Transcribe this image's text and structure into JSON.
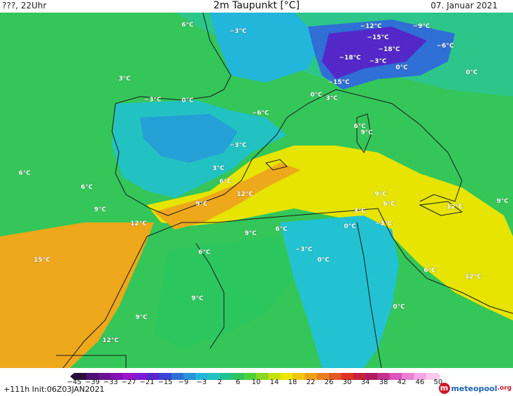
{
  "header": {
    "model_time": "???, 22Uhr",
    "title": "2m Taupunkt [°C]",
    "date": "07. Januar 2021"
  },
  "map": {
    "colors": {
      "sea_green": "#34c659",
      "warm_yellow": "#e6e400",
      "warm_orange": "#eda81b",
      "cool_cyan": "#22c2d2",
      "cold_blue": "#2f6fd6",
      "very_cold_purple": "#5428c8",
      "coastline": "#1a1a1a"
    },
    "labels": [
      {
        "text": "6°C",
        "lon_hint": "bay-of-biscay-north"
      },
      {
        "text": "−3°C",
        "lon_hint": "france-west"
      },
      {
        "text": "3°C",
        "lon_hint": "atlantic-north"
      },
      {
        "text": "−3°C",
        "lon_hint": "spain-northwest"
      },
      {
        "text": "0°C",
        "lon_hint": "spain-north"
      },
      {
        "text": "−6°C",
        "lon_hint": "pyrenees"
      },
      {
        "text": "3°C",
        "lon_hint": "gulf-of-lion"
      },
      {
        "text": "−3°C",
        "lon_hint": "spain-central"
      },
      {
        "text": "3°C",
        "lon_hint": "spain-east"
      },
      {
        "text": "6°C",
        "lon_hint": "valencia"
      },
      {
        "text": "6°C",
        "lon_hint": "atlantic-west"
      },
      {
        "text": "6°C",
        "lon_hint": "portugal-south"
      },
      {
        "text": "9°C",
        "lon_hint": "gulf-of-cadiz"
      },
      {
        "text": "12°C",
        "lon_hint": "alboran-north"
      },
      {
        "text": "9°C",
        "lon_hint": "alboran"
      },
      {
        "text": "12°C",
        "lon_hint": "balearic-sea"
      },
      {
        "text": "12°C",
        "lon_hint": "morocco-north"
      },
      {
        "text": "6°C",
        "lon_hint": "corsica"
      },
      {
        "text": "9°C",
        "lon_hint": "sardinia-north"
      },
      {
        "text": "−12°C",
        "lon_hint": "alps-west"
      },
      {
        "text": "−9°C",
        "lon_hint": "alps-east"
      },
      {
        "text": "−15°C",
        "lon_hint": "alps-center"
      },
      {
        "text": "−18°C",
        "lon_hint": "alps-south"
      },
      {
        "text": "−6°C",
        "lon_hint": "alps-far-east"
      },
      {
        "text": "−18°C",
        "lon_hint": "alps-southwest"
      },
      {
        "text": "−3°C",
        "lon_hint": "po-valley"
      },
      {
        "text": "0°C",
        "lon_hint": "po-east"
      },
      {
        "text": "0°C",
        "lon_hint": "italy-north-east"
      },
      {
        "text": "−15°C",
        "lon_hint": "alps-maritime"
      },
      {
        "text": "0°C",
        "lon_hint": "provence"
      },
      {
        "text": "3°C",
        "lon_hint": "ligurian-sea"
      },
      {
        "text": "9°C",
        "lon_hint": "tyrrhenian-south"
      },
      {
        "text": "6°C",
        "lon_hint": "tunisia-north"
      },
      {
        "text": "3°C",
        "lon_hint": "algeria-east"
      },
      {
        "text": "0°C",
        "lon_hint": "algeria-inland"
      },
      {
        "text": "−3°C",
        "lon_hint": "tunisia-central"
      },
      {
        "text": "9°C",
        "lon_hint": "algeria-west"
      },
      {
        "text": "6°C",
        "lon_hint": "algeria-north"
      },
      {
        "text": "9°C",
        "lon_hint": "ionian-west"
      },
      {
        "text": "12°C",
        "lon_hint": "ionian"
      },
      {
        "text": "6°C",
        "lon_hint": "morocco-atlas"
      },
      {
        "text": "−3°C",
        "lon_hint": "algeria-plateau"
      },
      {
        "text": "0°C",
        "lon_hint": "algeria-south"
      },
      {
        "text": "15°C",
        "lon_hint": "atlantic-southwest"
      },
      {
        "text": "6°C",
        "lon_hint": "gulf-of-gabes"
      },
      {
        "text": "12°C",
        "lon_hint": "libya-coast"
      },
      {
        "text": "9°C",
        "lon_hint": "morocco-south"
      },
      {
        "text": "9°C",
        "lon_hint": "morocco-southwest"
      },
      {
        "text": "0°C",
        "lon_hint": "sahara-east"
      },
      {
        "text": "12°C",
        "lon_hint": "western-sahara"
      }
    ]
  },
  "colorbar": {
    "ticks": [
      "−45",
      "−39",
      "−33",
      "−27",
      "−21",
      "−15",
      "−9",
      "−3",
      "2",
      "6",
      "10",
      "14",
      "18",
      "22",
      "26",
      "30",
      "34",
      "38",
      "42",
      "46",
      "50"
    ],
    "colors": [
      "#2a0d3d",
      "#4b1070",
      "#6a1292",
      "#8412b2",
      "#9a14cc",
      "#7a1ed6",
      "#5828cc",
      "#3a44d6",
      "#2f6fd6",
      "#2694dc",
      "#22b6da",
      "#22c2c2",
      "#1fc493",
      "#2cc65e",
      "#4fd138",
      "#8ad81f",
      "#c6e00c",
      "#ece600",
      "#f1c60c",
      "#eea317",
      "#e87f1e",
      "#e35a22",
      "#de3324",
      "#c91e3d",
      "#b01b5e",
      "#c43090",
      "#dd55bd",
      "#ec7ed6",
      "#f5a6e4",
      "#fac8ee"
    ]
  },
  "footer": {
    "run_info": "+111h  Init:06Z03JAN2021",
    "brand_name": "meteopool",
    "brand_tld": ".org"
  }
}
